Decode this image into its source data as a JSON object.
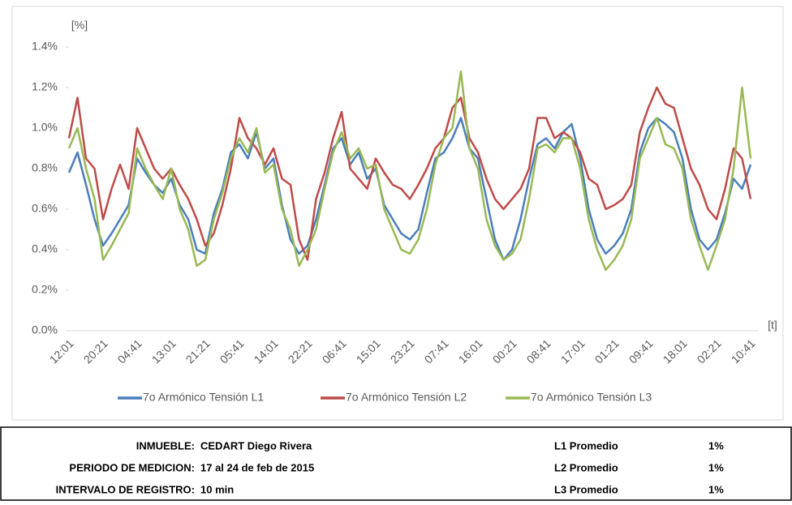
{
  "chart_data": {
    "type": "line",
    "y_unit_label": "[%]",
    "x_label": "[t]",
    "categories": [
      "12:01",
      null,
      null,
      null,
      "20:21",
      null,
      null,
      null,
      "04:41",
      null,
      null,
      null,
      "13:01",
      null,
      null,
      null,
      "21:21",
      null,
      null,
      null,
      "05:41",
      null,
      null,
      null,
      "14:01",
      null,
      null,
      null,
      "22:21",
      null,
      null,
      null,
      "06:41",
      null,
      null,
      null,
      "15:01",
      null,
      null,
      null,
      "23:21",
      null,
      null,
      null,
      "07:41",
      null,
      null,
      null,
      "16:01",
      null,
      null,
      null,
      "00:21",
      null,
      null,
      null,
      "08:41",
      null,
      null,
      null,
      "17:01",
      null,
      null,
      null,
      "01:21",
      null,
      null,
      null,
      "09:41",
      null,
      null,
      null,
      "18:01",
      null,
      null,
      null,
      "02:21",
      null,
      null,
      null,
      "10:41"
    ],
    "series": [
      {
        "name": "7o Armónico Tensión L1",
        "color": "#4a7ebb",
        "values": [
          0.78,
          0.88,
          0.72,
          0.55,
          0.42,
          0.48,
          0.55,
          0.62,
          0.85,
          0.78,
          0.72,
          0.68,
          0.75,
          0.62,
          0.55,
          0.4,
          0.38,
          0.58,
          0.7,
          0.88,
          0.92,
          0.85,
          0.98,
          0.8,
          0.85,
          0.62,
          0.45,
          0.38,
          0.42,
          0.55,
          0.72,
          0.9,
          0.95,
          0.82,
          0.88,
          0.75,
          0.8,
          0.62,
          0.55,
          0.48,
          0.45,
          0.5,
          0.68,
          0.85,
          0.88,
          0.95,
          1.05,
          0.9,
          0.85,
          0.65,
          0.45,
          0.35,
          0.4,
          0.55,
          0.75,
          0.92,
          0.95,
          0.9,
          0.98,
          1.02,
          0.85,
          0.6,
          0.45,
          0.38,
          0.42,
          0.48,
          0.6,
          0.88,
          1.0,
          1.05,
          1.02,
          0.98,
          0.85,
          0.6,
          0.45,
          0.4,
          0.45,
          0.58,
          0.75,
          0.7,
          0.82
        ]
      },
      {
        "name": "7o Armónico Tensión L2",
        "color": "#be4b48",
        "values": [
          0.95,
          1.15,
          0.85,
          0.8,
          0.55,
          0.7,
          0.82,
          0.7,
          1.0,
          0.9,
          0.8,
          0.75,
          0.8,
          0.72,
          0.65,
          0.55,
          0.42,
          0.48,
          0.62,
          0.8,
          1.05,
          0.95,
          0.9,
          0.82,
          0.9,
          0.75,
          0.72,
          0.45,
          0.35,
          0.65,
          0.78,
          0.95,
          1.08,
          0.8,
          0.75,
          0.7,
          0.85,
          0.78,
          0.72,
          0.7,
          0.65,
          0.72,
          0.8,
          0.9,
          0.95,
          1.1,
          1.15,
          0.95,
          0.88,
          0.75,
          0.65,
          0.6,
          0.65,
          0.7,
          0.8,
          1.05,
          1.05,
          0.95,
          0.98,
          0.95,
          0.88,
          0.75,
          0.72,
          0.6,
          0.62,
          0.65,
          0.72,
          0.98,
          1.1,
          1.2,
          1.12,
          1.1,
          0.95,
          0.8,
          0.72,
          0.6,
          0.55,
          0.7,
          0.9,
          0.85,
          0.65
        ]
      },
      {
        "name": "7o Armónico Tensión L3",
        "color": "#98b954",
        "values": [
          0.9,
          1.0,
          0.8,
          0.65,
          0.35,
          0.42,
          0.5,
          0.58,
          0.9,
          0.8,
          0.72,
          0.65,
          0.8,
          0.6,
          0.5,
          0.32,
          0.35,
          0.55,
          0.68,
          0.85,
          0.95,
          0.88,
          1.0,
          0.78,
          0.82,
          0.6,
          0.5,
          0.32,
          0.4,
          0.5,
          0.7,
          0.88,
          0.98,
          0.85,
          0.9,
          0.8,
          0.82,
          0.6,
          0.5,
          0.4,
          0.38,
          0.45,
          0.6,
          0.82,
          0.95,
          1.0,
          1.28,
          0.9,
          0.8,
          0.55,
          0.42,
          0.35,
          0.38,
          0.45,
          0.65,
          0.9,
          0.92,
          0.88,
          0.95,
          0.95,
          0.8,
          0.55,
          0.4,
          0.3,
          0.35,
          0.42,
          0.55,
          0.85,
          0.95,
          1.05,
          0.92,
          0.9,
          0.8,
          0.55,
          0.42,
          0.3,
          0.42,
          0.55,
          0.8,
          1.2,
          0.85
        ]
      }
    ],
    "ylim": [
      0,
      1.4
    ],
    "yticks": [
      {
        "value": 0,
        "label": "0.0%"
      },
      {
        "value": 0.2,
        "label": "0.2%"
      },
      {
        "value": 0.4,
        "label": "0.4%"
      },
      {
        "value": 0.6,
        "label": "0.6%"
      },
      {
        "value": 0.8,
        "label": "0.8%"
      },
      {
        "value": 1.0,
        "label": "1.0%"
      },
      {
        "value": 1.2,
        "label": "1.2%"
      },
      {
        "value": 1.4,
        "label": "1.4%"
      }
    ],
    "legend": "bottom"
  },
  "info": {
    "rows": [
      [
        "INMUEBLE:",
        "CEDART Diego Rivera",
        "L1 Promedio",
        "1%"
      ],
      [
        "PERIODO DE MEDICION:",
        "17 al 24 de feb de 2015",
        "L2 Promedio",
        "1%"
      ],
      [
        "INTERVALO DE REGISTRO:",
        "10 min",
        "L3 Promedio",
        "1%"
      ]
    ]
  }
}
